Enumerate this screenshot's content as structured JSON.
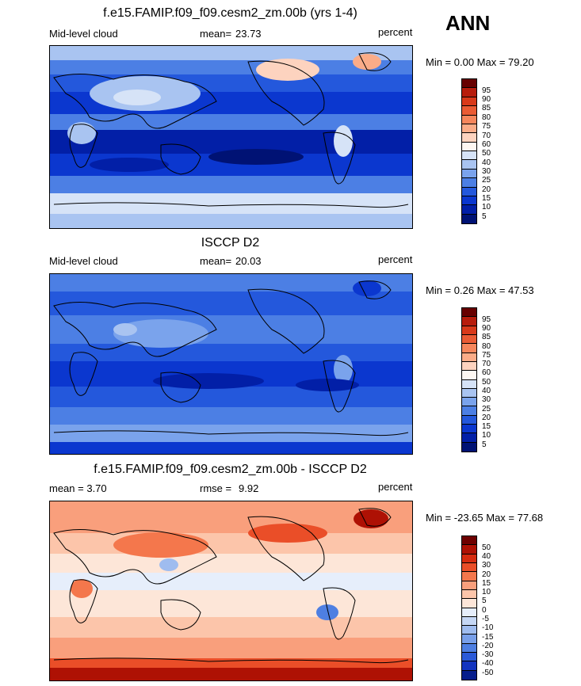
{
  "season": "ANN",
  "panels": [
    {
      "title": "f.e15.FAMIP.f09_f09.cesm2_zm.00b (yrs 1-4)",
      "left_text": "Mid-level cloud",
      "center_label": "mean=",
      "center_value": "23.73",
      "units": "percent",
      "minmax": "Min =   0.00 Max =  79.20",
      "colorbar_labels": [
        "95",
        "90",
        "85",
        "80",
        "75",
        "70",
        "60",
        "50",
        "40",
        "30",
        "25",
        "20",
        "15",
        "10",
        "5"
      ]
    },
    {
      "title": "ISCCP D2",
      "left_text": "Mid-level cloud",
      "center_label": "mean=",
      "center_value": "20.03",
      "units": "percent",
      "minmax": "Min =   0.26 Max =  47.53",
      "colorbar_labels": [
        "95",
        "90",
        "85",
        "80",
        "75",
        "70",
        "60",
        "50",
        "40",
        "30",
        "25",
        "20",
        "15",
        "10",
        "5"
      ]
    },
    {
      "title": "f.e15.FAMIP.f09_f09.cesm2_zm.00b - ISCCP D2",
      "left_text": "mean =    3.70",
      "center_label": "rmse =",
      "center_value": "9.92",
      "units": "percent",
      "minmax": "Min = -23.65 Max =  77.68",
      "colorbar_labels": [
        "50",
        "40",
        "30",
        "20",
        "15",
        "10",
        "5",
        "0",
        "-5",
        "-10",
        "-15",
        "-20",
        "-30",
        "-40",
        "-50"
      ]
    }
  ],
  "colors": {
    "abs_scale": [
      "#670000",
      "#b71c0c",
      "#d8391a",
      "#ea5b34",
      "#f6865c",
      "#fbac88",
      "#fdd3bf",
      "#fdf7f2",
      "#d6e3f7",
      "#a9c4f1",
      "#7aa3ec",
      "#4c7fe4",
      "#2458dc",
      "#0b37cf",
      "#021fa7",
      "#001274"
    ],
    "diff_scale": [
      "#6e0000",
      "#ae1104",
      "#d62b0f",
      "#ea4e28",
      "#f4774c",
      "#f99f7c",
      "#fcc5aa",
      "#fde6d8",
      "#e6eefb",
      "#c5d7f5",
      "#9fbcef",
      "#789fe9",
      "#4e7fe2",
      "#2b5ad8",
      "#1334bf",
      "#061d8c"
    ],
    "land_outline": "#000000"
  },
  "chart_data": [
    {
      "type": "heatmap",
      "title": "f.e15.FAMIP.f09_f09.cesm2_zm.00b (yrs 1-4)",
      "variable": "Mid-level cloud",
      "units": "percent",
      "mean": 23.73,
      "min": 0.0,
      "max": 79.2,
      "contour_levels": [
        5,
        10,
        15,
        20,
        25,
        30,
        40,
        50,
        60,
        70,
        75,
        80,
        85,
        90,
        95
      ]
    },
    {
      "type": "heatmap",
      "title": "ISCCP D2",
      "variable": "Mid-level cloud",
      "units": "percent",
      "mean": 20.03,
      "min": 0.26,
      "max": 47.53,
      "contour_levels": [
        5,
        10,
        15,
        20,
        25,
        30,
        40,
        50,
        60,
        70,
        75,
        80,
        85,
        90,
        95
      ]
    },
    {
      "type": "heatmap",
      "title": "f.e15.FAMIP.f09_f09.cesm2_zm.00b - ISCCP D2",
      "units": "percent",
      "mean": 3.7,
      "rmse": 9.92,
      "min": -23.65,
      "max": 77.68,
      "contour_levels": [
        -50,
        -40,
        -30,
        -20,
        -15,
        -10,
        -5,
        0,
        5,
        10,
        15,
        20,
        30,
        40,
        50
      ]
    }
  ]
}
